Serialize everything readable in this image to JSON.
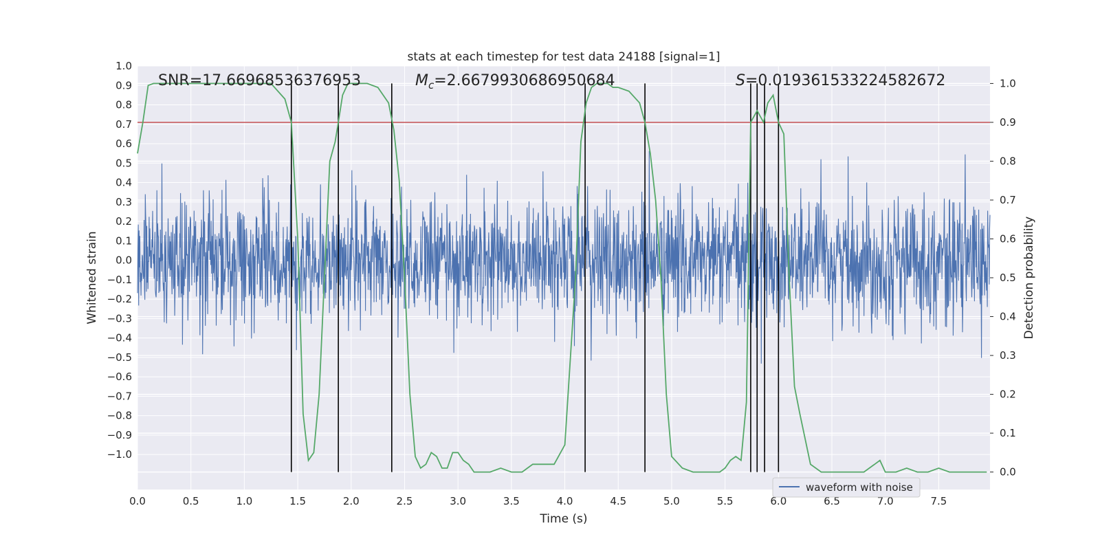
{
  "chart_data": {
    "type": "line",
    "title": "stats at each timestep for test data 24188 [signal=1]",
    "xlabel": "Time (s)",
    "ylabel": "Whitened strain",
    "y2label": "Detection probability",
    "xlim": [
      0,
      7.98
    ],
    "ylim": [
      -1.18,
      1.0
    ],
    "y2lim": [
      -0.045,
      1.045
    ],
    "xticks": [
      "0.0",
      "0.5",
      "1.0",
      "1.5",
      "2.0",
      "2.5",
      "3.0",
      "3.5",
      "4.0",
      "4.5",
      "5.0",
      "5.5",
      "6.0",
      "6.5",
      "7.0",
      "7.5"
    ],
    "yticks": [
      "1.0",
      "0.9",
      "0.8",
      "0.7",
      "0.6",
      "0.5",
      "0.4",
      "0.3",
      "0.2",
      "0.1",
      "0.0",
      "−0.1",
      "−0.2",
      "−0.3",
      "−0.4",
      "−0.5",
      "−0.6",
      "−0.7",
      "−0.8",
      "−0.9",
      "−1.0"
    ],
    "y2ticks": [
      "1.0",
      "0.9",
      "0.8",
      "0.7",
      "0.6",
      "0.5",
      "0.4",
      "0.3",
      "0.2",
      "0.1",
      "0.0"
    ],
    "grid": true,
    "legend": {
      "entries": [
        "waveform with noise"
      ],
      "placement": "lower right"
    },
    "annotations": {
      "snr": "SNR=17.66968536376953",
      "mc_symbol": "M",
      "mc_sub": "c",
      "mc_value": "=2.6679930686950684",
      "s_symbol": "S",
      "s_value": "=0.019361533224582672"
    },
    "threshold": 0.9,
    "vlines": [
      1.44,
      1.88,
      2.38,
      4.19,
      4.75,
      5.74,
      5.8,
      5.87,
      6.0
    ],
    "series": [
      {
        "name": "waveform with noise",
        "color": "#4c72b0",
        "axis": "left",
        "description_note": "",
        "noise_std": 0.16,
        "n_samples": 2200,
        "seed": 24188
      },
      {
        "axis": "right",
        "color": "#55a868",
        "x": [
          0.0,
          0.05,
          0.1,
          0.15,
          0.2,
          0.3,
          0.5,
          0.7,
          0.9,
          1.1,
          1.25,
          1.38,
          1.44,
          1.5,
          1.55,
          1.6,
          1.65,
          1.7,
          1.75,
          1.8,
          1.85,
          1.88,
          1.92,
          1.97,
          2.05,
          2.15,
          2.25,
          2.35,
          2.4,
          2.45,
          2.5,
          2.55,
          2.6,
          2.65,
          2.7,
          2.75,
          2.8,
          2.85,
          2.9,
          2.95,
          3.0,
          3.05,
          3.1,
          3.15,
          3.2,
          3.3,
          3.4,
          3.5,
          3.6,
          3.65,
          3.7,
          3.8,
          3.9,
          4.0,
          4.1,
          4.15,
          4.2,
          4.25,
          4.3,
          4.35,
          4.4,
          4.45,
          4.5,
          4.6,
          4.7,
          4.75,
          4.8,
          4.85,
          4.9,
          4.95,
          5.0,
          5.1,
          5.2,
          5.3,
          5.4,
          5.45,
          5.5,
          5.55,
          5.6,
          5.65,
          5.7,
          5.74,
          5.8,
          5.86,
          5.9,
          5.95,
          6.0,
          6.05,
          6.1,
          6.15,
          6.2,
          6.3,
          6.4,
          6.5,
          6.6,
          6.7,
          6.8,
          6.9,
          6.95,
          7.0,
          7.1,
          7.2,
          7.3,
          7.4,
          7.5,
          7.6,
          7.7,
          7.8,
          7.9,
          7.95
        ],
        "values": [
          0.82,
          0.9,
          0.995,
          1.0,
          1.0,
          1.0,
          1.0,
          1.0,
          1.0,
          1.0,
          1.0,
          0.96,
          0.9,
          0.6,
          0.15,
          0.03,
          0.05,
          0.2,
          0.5,
          0.8,
          0.85,
          0.9,
          0.97,
          1.0,
          1.0,
          1.0,
          0.99,
          0.95,
          0.88,
          0.75,
          0.5,
          0.2,
          0.04,
          0.01,
          0.02,
          0.05,
          0.04,
          0.01,
          0.01,
          0.05,
          0.05,
          0.03,
          0.02,
          0.0,
          0.0,
          0.0,
          0.01,
          0.0,
          0.0,
          0.01,
          0.02,
          0.02,
          0.02,
          0.07,
          0.5,
          0.85,
          0.95,
          0.99,
          1.0,
          1.0,
          1.0,
          0.99,
          0.99,
          0.98,
          0.95,
          0.9,
          0.82,
          0.7,
          0.5,
          0.2,
          0.04,
          0.01,
          0.0,
          0.0,
          0.0,
          0.0,
          0.01,
          0.03,
          0.04,
          0.03,
          0.18,
          0.9,
          0.93,
          0.9,
          0.95,
          0.97,
          0.9,
          0.87,
          0.5,
          0.22,
          0.15,
          0.02,
          0.0,
          0.0,
          0.0,
          0.0,
          0.0,
          0.02,
          0.03,
          0.0,
          0.0,
          0.01,
          0.0,
          0.0,
          0.01,
          0.0,
          0.0,
          0.0,
          0.0,
          0.0
        ]
      }
    ],
    "colors": {
      "plot_bg": "#eaeaf2",
      "grid": "#ffffff",
      "threshold_line": "#c44e52",
      "vline": "#000000",
      "text": "#262626"
    }
  }
}
